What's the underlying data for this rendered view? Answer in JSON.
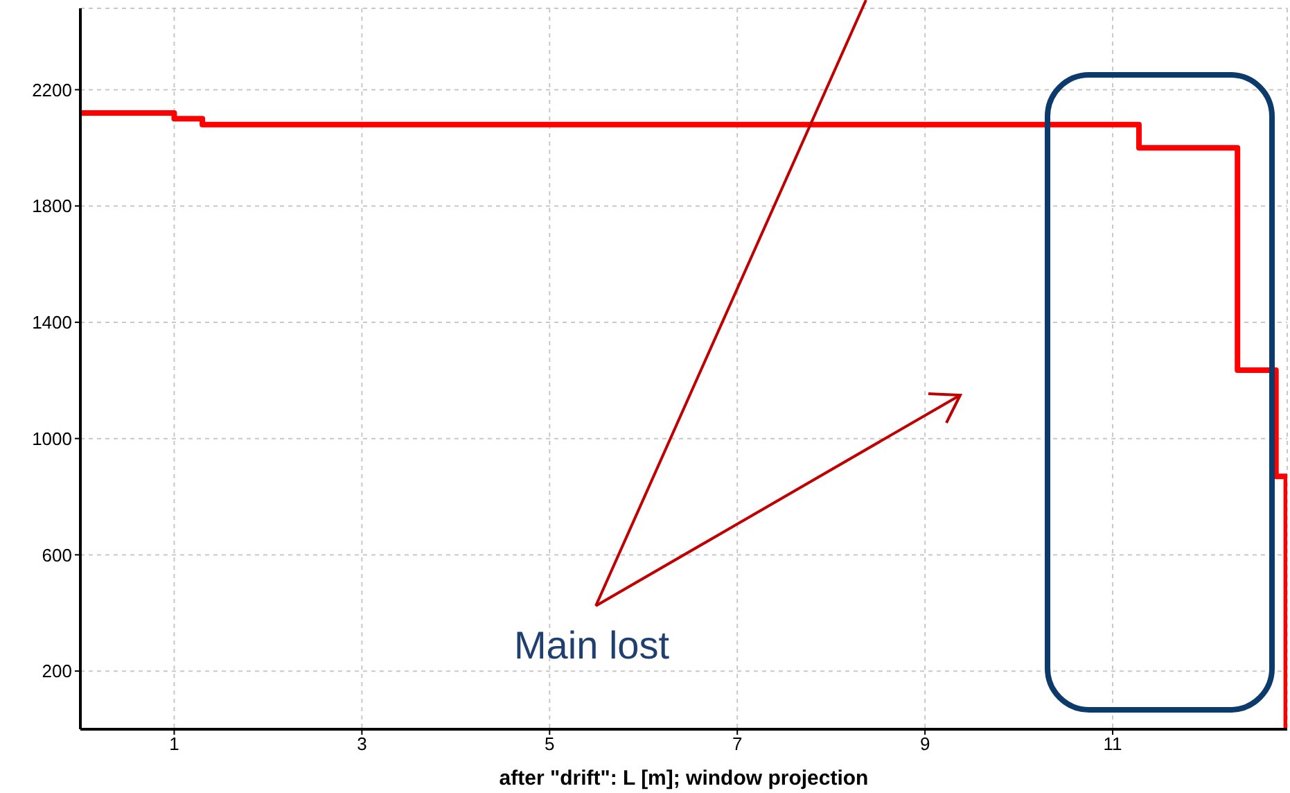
{
  "chart_data": {
    "type": "step",
    "xlabel": "after \"drift\": L [m];  window projection",
    "x": [
      0,
      1,
      1.3,
      11.28,
      12.33,
      12.74,
      12.85
    ],
    "series": [
      {
        "color": "#ff0000",
        "values": [
          2120,
          2100,
          2080,
          2000,
          1235,
          870,
          0
        ]
      }
    ],
    "xlim": [
      0,
      12.86
    ],
    "ylim": [
      0,
      2480
    ],
    "xticks": [
      1,
      3,
      5,
      7,
      9,
      11
    ],
    "yticks": [
      200,
      600,
      1000,
      1400,
      1800,
      2200
    ],
    "grid": true,
    "legend": false,
    "marker": "none",
    "line_style": "solid",
    "annotations": [
      "Main lost"
    ]
  }
}
